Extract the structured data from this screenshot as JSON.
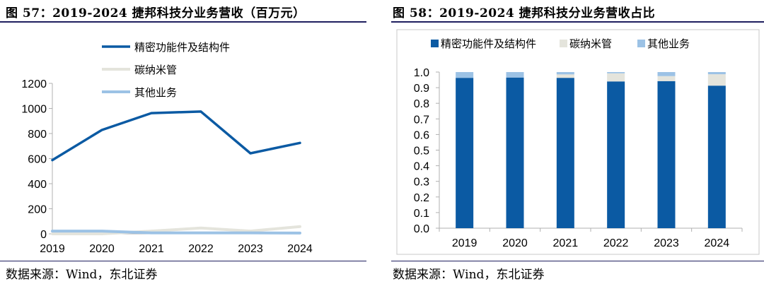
{
  "left_panel": {
    "title": "图 57：2019-2024 捷邦科技分业务营收（百万元）",
    "source": "数据来源：Wind，东北证券"
  },
  "right_panel": {
    "title": "图 58：2019-2024 捷邦科技分业务营收占比",
    "source": "数据来源：Wind，东北证券"
  },
  "colors": {
    "precision": "#0b5aa3",
    "carbon": "#e4e4dc",
    "other": "#9cc2e5",
    "axis": "#b0b0b0",
    "rule": "#1f1f5f"
  },
  "chart_data": [
    {
      "type": "line",
      "title": "",
      "categories": [
        "2019",
        "2020",
        "2021",
        "2022",
        "2023",
        "2024"
      ],
      "series": [
        {
          "name": "精密功能件及结构件",
          "color": "#0b5aa3",
          "values": [
            588,
            828,
            963,
            975,
            642,
            725
          ]
        },
        {
          "name": "碳纳米管",
          "color": "#e4e4dc",
          "values": [
            0,
            0,
            22,
            46,
            22,
            58
          ]
        },
        {
          "name": "其他业务",
          "color": "#9cc2e5",
          "values": [
            22,
            22,
            8,
            8,
            8,
            6
          ]
        }
      ],
      "ylim": [
        0,
        1200
      ],
      "yticks": [
        "0",
        "200",
        "400",
        "600",
        "800",
        "1000",
        "1200"
      ],
      "legend": "upper-middle",
      "grid": false
    },
    {
      "type": "bar",
      "stacked": true,
      "title": "",
      "categories": [
        "2019",
        "2020",
        "2021",
        "2022",
        "2023",
        "2024"
      ],
      "series": [
        {
          "name": "精密功能件及结构件",
          "color": "#0b5aa3",
          "values": [
            0.963,
            0.965,
            0.963,
            0.94,
            0.942,
            0.913
          ]
        },
        {
          "name": "碳纳米管",
          "color": "#e4e4dc",
          "values": [
            0.0,
            0.0,
            0.022,
            0.052,
            0.032,
            0.073
          ]
        },
        {
          "name": "其他业务",
          "color": "#9cc2e5",
          "values": [
            0.037,
            0.035,
            0.015,
            0.008,
            0.026,
            0.014
          ]
        }
      ],
      "ylim": [
        0,
        1.0
      ],
      "yticks": [
        "0.0",
        "0.1",
        "0.2",
        "0.3",
        "0.4",
        "0.5",
        "0.6",
        "0.7",
        "0.8",
        "0.9",
        "1.0"
      ],
      "legend": "top",
      "grid": false
    }
  ]
}
